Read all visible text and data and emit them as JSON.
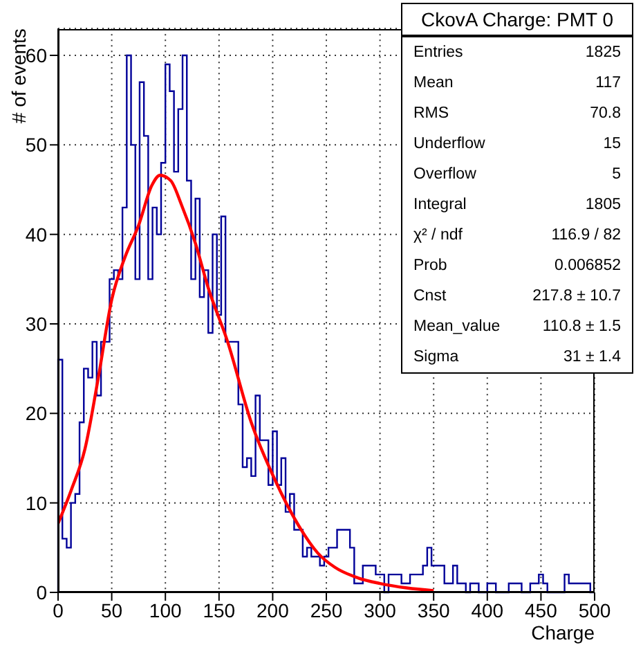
{
  "chart_data": {
    "type": "histogram",
    "title": "CkovA Charge: PMT 0",
    "xlabel": "Charge",
    "ylabel": "# of events",
    "bins": [
      0,
      4,
      8,
      12,
      16,
      20,
      24,
      28,
      32,
      36,
      40,
      44,
      48,
      52,
      56,
      60,
      64,
      68,
      72,
      76,
      80,
      84,
      88,
      92,
      96,
      100,
      104,
      108,
      112,
      116,
      120,
      124,
      128,
      132,
      136,
      140,
      144,
      148,
      152,
      156,
      160,
      164,
      168,
      172,
      176,
      180,
      184,
      188,
      192,
      196,
      200,
      204,
      208,
      212,
      216,
      220,
      224,
      228,
      232,
      236,
      240,
      244,
      248,
      252,
      256,
      260,
      264,
      268,
      272,
      276,
      280,
      284,
      288,
      292,
      296,
      300,
      304,
      308,
      312,
      316,
      320,
      324,
      328,
      332,
      336,
      340,
      344,
      348,
      352,
      356,
      360,
      364,
      368,
      372,
      376,
      380,
      384,
      388,
      392,
      396,
      400,
      404,
      408,
      412,
      416,
      420,
      424,
      428,
      432,
      436,
      440,
      444,
      448,
      452,
      456,
      460,
      464,
      468,
      472,
      476,
      480,
      484,
      488,
      492,
      496,
      500
    ],
    "series": [
      {
        "color": "#000099",
        "values": [
          26,
          6,
          5,
          10,
          11,
          19,
          25,
          24,
          28,
          22,
          28,
          28,
          35,
          36,
          35,
          43,
          60,
          50,
          35,
          57,
          51,
          35,
          43,
          40,
          48,
          59,
          56,
          47,
          54,
          60,
          46,
          35,
          44,
          33,
          36,
          29,
          40,
          31,
          42,
          28,
          28,
          28,
          21,
          14,
          15,
          13,
          22,
          17,
          17,
          12,
          18,
          12,
          15,
          9,
          11,
          7,
          7,
          4,
          5,
          4,
          4,
          3,
          4,
          5,
          5,
          7,
          7,
          7,
          5,
          1,
          1,
          3,
          3,
          3,
          2,
          2,
          0,
          2,
          2,
          2,
          1,
          1,
          2,
          2,
          2,
          3,
          5,
          3,
          3,
          3,
          1,
          1,
          3,
          1,
          1,
          0,
          1,
          1,
          0,
          0,
          1,
          1,
          0,
          0,
          0,
          1,
          1,
          1,
          0,
          0,
          1,
          1,
          2,
          1,
          0,
          0,
          0,
          0,
          2,
          1,
          1,
          1,
          1,
          1,
          0
        ]
      },
      {
        "type": "line",
        "color": "#ff0000",
        "x": [
          0,
          12.5,
          25,
          37.5,
          50,
          62.5,
          75,
          87.5,
          95,
          105,
          115,
          128,
          140,
          158,
          180,
          202,
          224,
          242,
          258,
          280,
          300,
          325,
          350
        ],
        "values": [
          7.7,
          11.5,
          16,
          24,
          32.7,
          37.5,
          41,
          45.5,
          46.6,
          46,
          43.3,
          39,
          34,
          28,
          19,
          12.6,
          7.5,
          4.4,
          2.8,
          1.6,
          1,
          0.5,
          0.2
        ]
      }
    ],
    "xlim": [
      0,
      500
    ],
    "xticks": [
      0,
      50,
      100,
      150,
      200,
      250,
      300,
      350,
      400,
      450,
      500
    ],
    "ylim": [
      0,
      63
    ],
    "yticks": [
      0,
      10,
      20,
      30,
      40,
      50,
      60
    ],
    "grid": true,
    "legend": false,
    "annotations": [
      "Entries",
      "1825",
      "Mean",
      "117",
      "RMS",
      "70.8",
      "Underflow",
      "15",
      "Overflow",
      "5",
      "Integral",
      "1805",
      "χ² / ndf",
      "116.9 / 82",
      "Prob",
      "0.006852",
      "Cnst",
      "217.8 ± 10.7",
      "Mean_value",
      "110.8 ± 1.5",
      "Sigma",
      "31 ± 1.4"
    ]
  }
}
